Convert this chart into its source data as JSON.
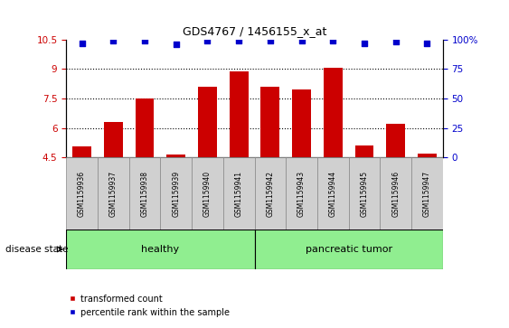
{
  "title": "GDS4767 / 1456155_x_at",
  "samples": [
    "GSM1159936",
    "GSM1159937",
    "GSM1159938",
    "GSM1159939",
    "GSM1159940",
    "GSM1159941",
    "GSM1159942",
    "GSM1159943",
    "GSM1159944",
    "GSM1159945",
    "GSM1159946",
    "GSM1159947"
  ],
  "bar_values": [
    5.05,
    6.3,
    7.5,
    4.65,
    8.1,
    8.85,
    8.1,
    7.95,
    9.05,
    5.1,
    6.2,
    4.7
  ],
  "dot_values": [
    10.3,
    10.42,
    10.44,
    10.25,
    10.44,
    10.44,
    10.44,
    10.44,
    10.44,
    10.3,
    10.38,
    10.3
  ],
  "bar_color": "#cc0000",
  "dot_color": "#0000cc",
  "ylim_left": [
    4.5,
    10.5
  ],
  "yticks_left": [
    4.5,
    6.0,
    7.5,
    9.0,
    10.5
  ],
  "ytick_labels_left": [
    "4.5",
    "6",
    "7.5",
    "9",
    "10.5"
  ],
  "ytick_labels_right": [
    "0",
    "25",
    "50",
    "75",
    "100%"
  ],
  "xticklabel_area_color": "#d0d0d0",
  "group_bar_color": "#90EE90",
  "legend_items": [
    {
      "color": "#cc0000",
      "label": "transformed count"
    },
    {
      "color": "#0000cc",
      "label": "percentile rank within the sample"
    }
  ],
  "groups": [
    {
      "label": "healthy",
      "start": 0,
      "end": 5
    },
    {
      "label": "pancreatic tumor",
      "start": 6,
      "end": 11
    }
  ],
  "disease_state_label": "disease state"
}
